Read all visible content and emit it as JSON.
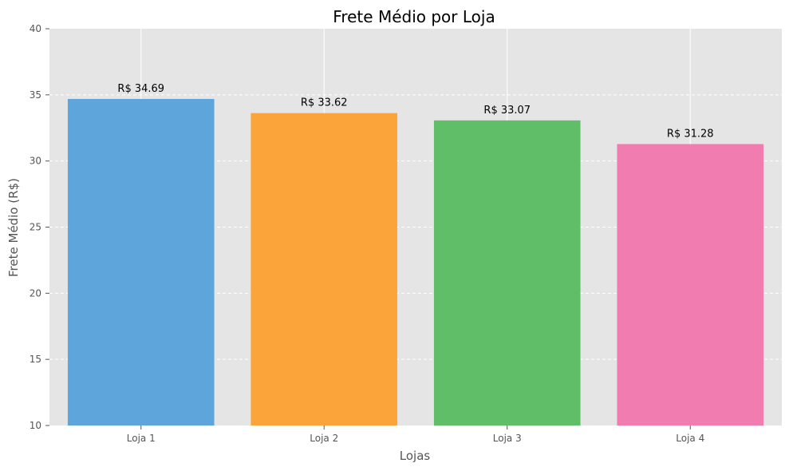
{
  "chart_data": {
    "type": "bar",
    "title": "Frete Médio por Loja",
    "xlabel": "Lojas",
    "ylabel": "Frete Médio (R$)",
    "categories": [
      "Loja 1",
      "Loja 2",
      "Loja 3",
      "Loja 4"
    ],
    "values": [
      34.69,
      33.62,
      33.07,
      31.28
    ],
    "data_labels": [
      "R$ 34.69",
      "R$ 33.62",
      "R$ 33.07",
      "R$ 31.28"
    ],
    "colors": [
      "#5DA5DA",
      "#FAA43A",
      "#60BD68",
      "#F17CB0"
    ],
    "ylim": [
      10,
      40
    ],
    "yticks": [
      10,
      15,
      20,
      25,
      30,
      35,
      40
    ],
    "grid": true,
    "background": "#E5E5E5"
  }
}
